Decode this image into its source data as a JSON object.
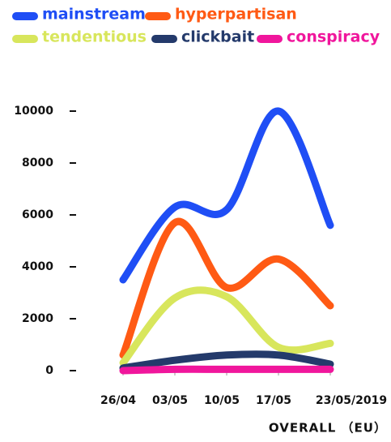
{
  "chart_data": {
    "type": "line",
    "xlabel": "OVERALL （EU）",
    "categories": [
      "26/04",
      "03/05",
      "10/05",
      "17/05",
      "23/05/2019"
    ],
    "series": [
      {
        "name": "mainstream",
        "color": "#1f4ef5",
        "values": [
          3500,
          6300,
          6200,
          10000,
          5600
        ]
      },
      {
        "name": "hyperpartisan",
        "color": "#ff5a14",
        "values": [
          600,
          5700,
          3200,
          4300,
          2500
        ]
      },
      {
        "name": "tendentious",
        "color": "#d8e65c",
        "values": [
          300,
          2800,
          2850,
          900,
          1050
        ]
      },
      {
        "name": "clickbait",
        "color": "#243a6b",
        "values": [
          100,
          400,
          600,
          600,
          250
        ]
      },
      {
        "name": "conspiracy",
        "color": "#f0169c",
        "values": [
          0,
          50,
          50,
          50,
          50
        ]
      }
    ],
    "ylim": [
      0,
      10000
    ],
    "yticks": [
      0,
      2000,
      4000,
      6000,
      8000,
      10000
    ],
    "smooth": true
  }
}
